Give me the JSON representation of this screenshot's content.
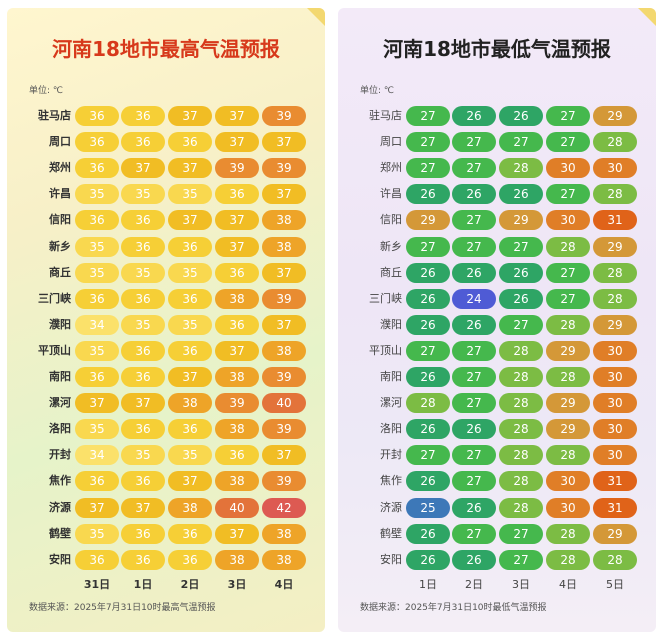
{
  "high": {
    "title": "河南18地市最高气温预报",
    "unit": "单位: ℃",
    "source": "数据来源：2025年7月31日10时最高气温预报",
    "days": [
      "31日",
      "1日",
      "2日",
      "3日",
      "4日"
    ],
    "cities": [
      "驻马店",
      "周口",
      "郑州",
      "许昌",
      "信阳",
      "新乡",
      "商丘",
      "三门峡",
      "濮阳",
      "平顶山",
      "南阳",
      "漯河",
      "洛阳",
      "开封",
      "焦作",
      "济源",
      "鹤壁",
      "安阳"
    ],
    "values": [
      [
        36,
        36,
        37,
        37,
        39
      ],
      [
        36,
        36,
        36,
        37,
        37
      ],
      [
        36,
        37,
        37,
        39,
        39
      ],
      [
        35,
        35,
        35,
        36,
        37
      ],
      [
        36,
        36,
        37,
        37,
        38
      ],
      [
        35,
        36,
        36,
        37,
        38
      ],
      [
        35,
        35,
        35,
        36,
        37
      ],
      [
        36,
        36,
        36,
        38,
        39
      ],
      [
        34,
        35,
        35,
        36,
        37
      ],
      [
        35,
        36,
        36,
        37,
        38
      ],
      [
        36,
        36,
        37,
        38,
        39
      ],
      [
        37,
        37,
        38,
        39,
        40
      ],
      [
        35,
        36,
        36,
        38,
        39
      ],
      [
        34,
        35,
        35,
        36,
        37
      ],
      [
        36,
        36,
        37,
        38,
        39
      ],
      [
        37,
        37,
        38,
        40,
        42
      ],
      [
        35,
        36,
        36,
        37,
        38
      ],
      [
        36,
        36,
        36,
        38,
        38
      ]
    ],
    "colors": {
      "34": "#fbe16a",
      "35": "#f9d84f",
      "36": "#f6cf36",
      "37": "#f1bd24",
      "38": "#eea428",
      "39": "#e98c31",
      "40": "#e3733a",
      "42": "#dd5a52"
    }
  },
  "low": {
    "title": "河南18地市最低气温预报",
    "unit": "单位: ℃",
    "source": "数据来源：2025年7月31日10时最低气温预报",
    "days": [
      "1日",
      "2日",
      "3日",
      "4日",
      "5日"
    ],
    "cities": [
      "驻马店",
      "周口",
      "郑州",
      "许昌",
      "信阳",
      "新乡",
      "商丘",
      "三门峡",
      "濮阳",
      "平顶山",
      "南阳",
      "漯河",
      "洛阳",
      "开封",
      "焦作",
      "济源",
      "鹤壁",
      "安阳"
    ],
    "values": [
      [
        27,
        26,
        26,
        27,
        29
      ],
      [
        27,
        27,
        27,
        27,
        28
      ],
      [
        27,
        27,
        28,
        30,
        30
      ],
      [
        26,
        26,
        26,
        27,
        28
      ],
      [
        29,
        27,
        29,
        30,
        31
      ],
      [
        27,
        27,
        27,
        28,
        29
      ],
      [
        26,
        26,
        26,
        27,
        28
      ],
      [
        26,
        24,
        26,
        27,
        28
      ],
      [
        26,
        26,
        27,
        28,
        29
      ],
      [
        27,
        27,
        28,
        29,
        30
      ],
      [
        26,
        27,
        28,
        28,
        30
      ],
      [
        28,
        27,
        28,
        29,
        30
      ],
      [
        26,
        26,
        28,
        29,
        30
      ],
      [
        27,
        27,
        28,
        28,
        30
      ],
      [
        26,
        27,
        28,
        30,
        31
      ],
      [
        25,
        26,
        28,
        30,
        31
      ],
      [
        26,
        27,
        27,
        28,
        29
      ],
      [
        26,
        26,
        27,
        28,
        28
      ]
    ],
    "colors": {
      "24": "#4f5bd5",
      "25": "#3d78b8",
      "26": "#2ea565",
      "27": "#45b84d",
      "28": "#7cbc44",
      "29": "#d49838",
      "30": "#e07e27",
      "31": "#e06319"
    }
  }
}
